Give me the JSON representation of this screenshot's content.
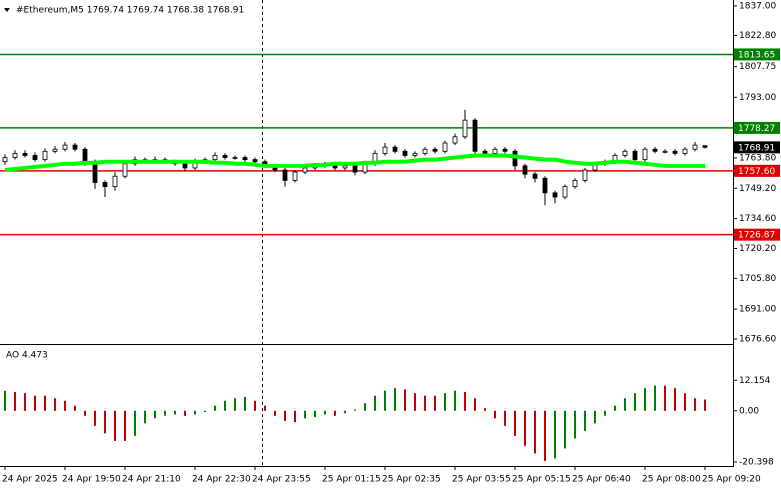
{
  "chart_data": [
    {
      "type": "candlestick",
      "title": "#Ethereum,M5  1769.74 1769.74 1768.38 1768.91",
      "categories": [
        "24 Apr 2025",
        null,
        null,
        null,
        null,
        null,
        "24 Apr 19:50",
        null,
        null,
        null,
        null,
        null,
        "24 Apr 21:10",
        null,
        null,
        null,
        null,
        null,
        null,
        "24 Apr 22:30",
        null,
        null,
        null,
        null,
        null,
        "24 Apr 23:55",
        null,
        null,
        null,
        null,
        null,
        null,
        "25 Apr 01:15",
        null,
        null,
        null,
        null,
        null,
        "25 Apr 02:35",
        null,
        null,
        null,
        null,
        null,
        null,
        "25 Apr 03:55",
        null,
        null,
        null,
        null,
        null,
        "25 Apr 05:15",
        null,
        null,
        null,
        null,
        null,
        "25 Apr 06:40",
        null,
        null,
        null,
        null,
        null,
        null,
        "25 Apr 08:00",
        null,
        null,
        null,
        null,
        null,
        "25 Apr 09:20"
      ],
      "open": [
        1762,
        1764,
        1766,
        1765,
        1763,
        1767,
        1768,
        1770,
        1768,
        1762,
        1752,
        1750,
        1755,
        1761,
        1763,
        1762,
        1763,
        1762,
        1761,
        1759,
        1762,
        1763,
        1765,
        1764,
        1764,
        1763,
        1762,
        1760,
        1758,
        1753,
        1757,
        1759,
        1760,
        1761,
        1759,
        1760,
        1757,
        1761,
        1766,
        1769,
        1767,
        1765,
        1766,
        1768,
        1767,
        1771,
        1774,
        1782,
        1767,
        1766,
        1768,
        1767,
        1760,
        1756,
        1754,
        1747,
        1745,
        1750,
        1753,
        1758,
        1761,
        1762,
        1765,
        1767,
        1763,
        1768,
        1767,
        1767,
        1766,
        1768,
        1769.74
      ],
      "high": [
        1765.5,
        1767.5,
        1767.5,
        1766.5,
        1768.5,
        1769.5,
        1771.5,
        1771,
        1769,
        1763,
        1753,
        1757,
        1762.5,
        1764.5,
        1764,
        1764.5,
        1764,
        1763,
        1762,
        1763.5,
        1764,
        1766.5,
        1766,
        1765,
        1765,
        1764,
        1763,
        1761,
        1759,
        1758,
        1760,
        1761,
        1762,
        1762,
        1761,
        1761,
        1762,
        1767.5,
        1771,
        1770,
        1768,
        1767,
        1769,
        1769,
        1772,
        1775.5,
        1787,
        1783,
        1768,
        1769,
        1769,
        1768,
        1761,
        1757,
        1755,
        1748,
        1751,
        1754,
        1759,
        1762,
        1763,
        1766,
        1768,
        1768,
        1769,
        1769,
        1768,
        1768,
        1769,
        1771.5,
        1769.74
      ],
      "low": [
        1760.5,
        1763,
        1764,
        1762,
        1762,
        1766,
        1767,
        1767,
        1760,
        1749,
        1745,
        1748,
        1754,
        1760,
        1761,
        1761,
        1761,
        1760,
        1757.5,
        1758,
        1761,
        1762,
        1763,
        1763,
        1762,
        1761,
        1759,
        1757,
        1750,
        1752,
        1756,
        1758,
        1759,
        1758,
        1758,
        1755.5,
        1756,
        1760,
        1765,
        1766,
        1764,
        1764,
        1765,
        1766,
        1766,
        1770,
        1773,
        1765,
        1765,
        1765,
        1766,
        1758,
        1754,
        1752,
        1741,
        1742,
        1744,
        1749,
        1752,
        1757,
        1760,
        1761,
        1764,
        1762,
        1762,
        1766,
        1766,
        1765,
        1765,
        1767,
        1768.38
      ],
      "close": [
        1764,
        1766,
        1765,
        1763,
        1767,
        1768,
        1770,
        1768,
        1762,
        1752,
        1750,
        1755,
        1761,
        1763,
        1762,
        1763,
        1762,
        1761,
        1759,
        1762,
        1763,
        1765,
        1764,
        1764,
        1763,
        1762,
        1760,
        1758,
        1753,
        1757,
        1759,
        1760,
        1761,
        1759,
        1760,
        1757,
        1761,
        1766,
        1769,
        1767,
        1765,
        1766,
        1768,
        1767,
        1771,
        1774,
        1782,
        1767,
        1766,
        1768,
        1767,
        1760,
        1756,
        1754,
        1747,
        1745,
        1750,
        1753,
        1758,
        1761,
        1762,
        1765,
        1767,
        1763,
        1768,
        1767,
        1767,
        1766,
        1768,
        1770,
        1768.91
      ],
      "moving_average": {
        "color": "#00ff00",
        "values": [
          1758,
          1758.5,
          1759,
          1759.5,
          1760,
          1760.5,
          1761,
          1761,
          1761.5,
          1761.5,
          1762,
          1762,
          1762,
          1762,
          1762,
          1762,
          1762,
          1762,
          1762,
          1762,
          1762,
          1761.5,
          1761.5,
          1761,
          1761,
          1760.5,
          1760,
          1760,
          1760,
          1760,
          1760,
          1760.5,
          1760.5,
          1761,
          1761,
          1761,
          1761.5,
          1761.5,
          1762,
          1762,
          1762,
          1762.5,
          1763,
          1763,
          1763.5,
          1764,
          1764.5,
          1765,
          1765,
          1765,
          1765,
          1764.5,
          1764,
          1763.5,
          1763,
          1763,
          1762,
          1761.5,
          1761,
          1761,
          1761.5,
          1762,
          1762,
          1761.5,
          1761,
          1760.5,
          1760,
          1760,
          1760,
          1760,
          1760
        ]
      },
      "levels": [
        {
          "value": 1813.65,
          "color": "#008000"
        },
        {
          "value": 1778.27,
          "color": "#008000"
        },
        {
          "value": 1757.6,
          "label": "1757.60",
          "color": "#e00000"
        },
        {
          "value": 1726.87,
          "color": "#e00000"
        }
      ],
      "ylim": [
        1674.7,
        1838.9
      ],
      "yticks": [
        {
          "value": 1837,
          "label": "1837.00"
        },
        {
          "value": 1822.8,
          "label": "1822.80"
        },
        {
          "value": 1807.75,
          "label": "1807.75"
        },
        {
          "value": 1793,
          "label": "1793.00"
        },
        {
          "value": 1763.8,
          "label": "1763.80"
        },
        {
          "value": 1749.2,
          "label": "1749.20"
        },
        {
          "value": 1734.6,
          "label": "1734.60"
        },
        {
          "value": 1720.2,
          "label": "1720.20"
        },
        {
          "value": 1705.8,
          "label": "1705.80"
        },
        {
          "value": 1691,
          "label": "1691.00"
        },
        {
          "value": 1676.6,
          "label": "1676.60"
        }
      ]
    },
    {
      "type": "bar",
      "title": "AO 4.473",
      "values": [
        8,
        7.5,
        7,
        6,
        6,
        5,
        4,
        2,
        -2,
        -6,
        -9,
        -12,
        -12,
        -10,
        -5,
        -3,
        -2,
        -1.5,
        -2,
        -1.5,
        -0.5,
        2,
        4,
        5,
        5.5,
        4,
        2,
        -2,
        -4,
        -4.5,
        -3,
        -2.5,
        -1.5,
        -2,
        -1,
        0.5,
        3,
        6,
        8,
        9,
        8.5,
        7,
        6,
        6,
        7,
        8,
        7.5,
        5,
        1,
        -3,
        -6,
        -10,
        -14,
        -17,
        -20,
        -19,
        -15,
        -11,
        -8,
        -5,
        -2,
        2,
        5,
        7,
        9,
        10,
        10,
        9,
        7,
        5,
        4.473
      ],
      "up_color": "#008000",
      "down_color": "#c00000",
      "ylim": [
        -22,
        25.4
      ],
      "yticks": [
        12.154,
        {
          "value": 0,
          "label": "0.00"
        },
        -20.398
      ]
    }
  ]
}
